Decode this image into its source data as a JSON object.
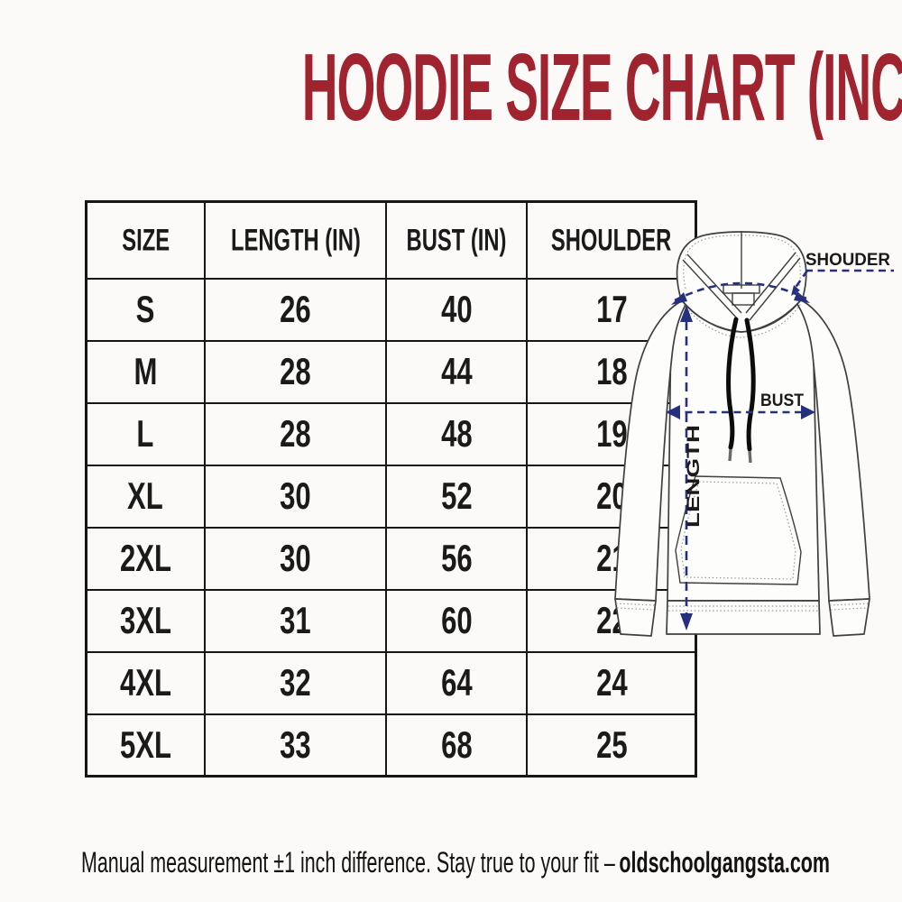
{
  "title": "HOODIE SIZE CHART (INCH)",
  "chart_data": {
    "type": "table",
    "title": "HOODIE SIZE CHART (INCH)",
    "unit": "inch",
    "columns": [
      "SIZE",
      "LENGTH (IN)",
      "BUST (IN)",
      "SHOULDER"
    ],
    "rows": [
      [
        "S",
        "26",
        "40",
        "17"
      ],
      [
        "M",
        "28",
        "44",
        "18"
      ],
      [
        "L",
        "28",
        "48",
        "19"
      ],
      [
        "XL",
        "30",
        "52",
        "20"
      ],
      [
        "2XL",
        "30",
        "56",
        "21"
      ],
      [
        "3XL",
        "31",
        "60",
        "22"
      ],
      [
        "4XL",
        "32",
        "64",
        "24"
      ],
      [
        "5XL",
        "33",
        "68",
        "25"
      ]
    ]
  },
  "diagram": {
    "shoulder_label": "SHOUDER",
    "bust_label": "BUST",
    "length_label": "LENGTH"
  },
  "footer": {
    "note": "Manual measurement ±1 inch difference. Stay true to your fit –",
    "brand": "oldschoolgangsta.com"
  },
  "colors": {
    "title_red": "#a0242f",
    "annotation_navy": "#26317e",
    "table_line": "#161616",
    "text_black": "#1a1a1a",
    "background": "#fbfaf8"
  }
}
